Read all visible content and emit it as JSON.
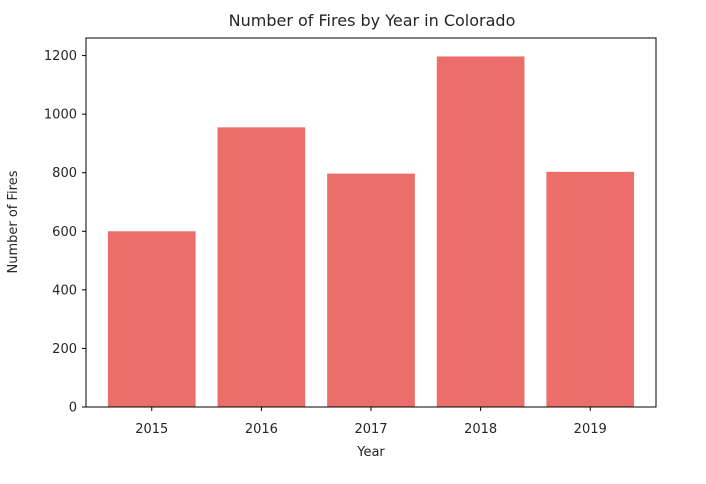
{
  "chart_data": {
    "type": "bar",
    "title": "Number of Fires by Year in Colorado",
    "xlabel": "Year",
    "ylabel": "Number of Fires",
    "categories": [
      "2015",
      "2016",
      "2017",
      "2018",
      "2019"
    ],
    "values": [
      600,
      955,
      797,
      1197,
      803
    ],
    "ylim": [
      0,
      1260
    ],
    "yticks": [
      0,
      200,
      400,
      600,
      800,
      1000,
      1200
    ],
    "bar_color": "#eb6e6b",
    "grid": false,
    "legend": "none"
  }
}
